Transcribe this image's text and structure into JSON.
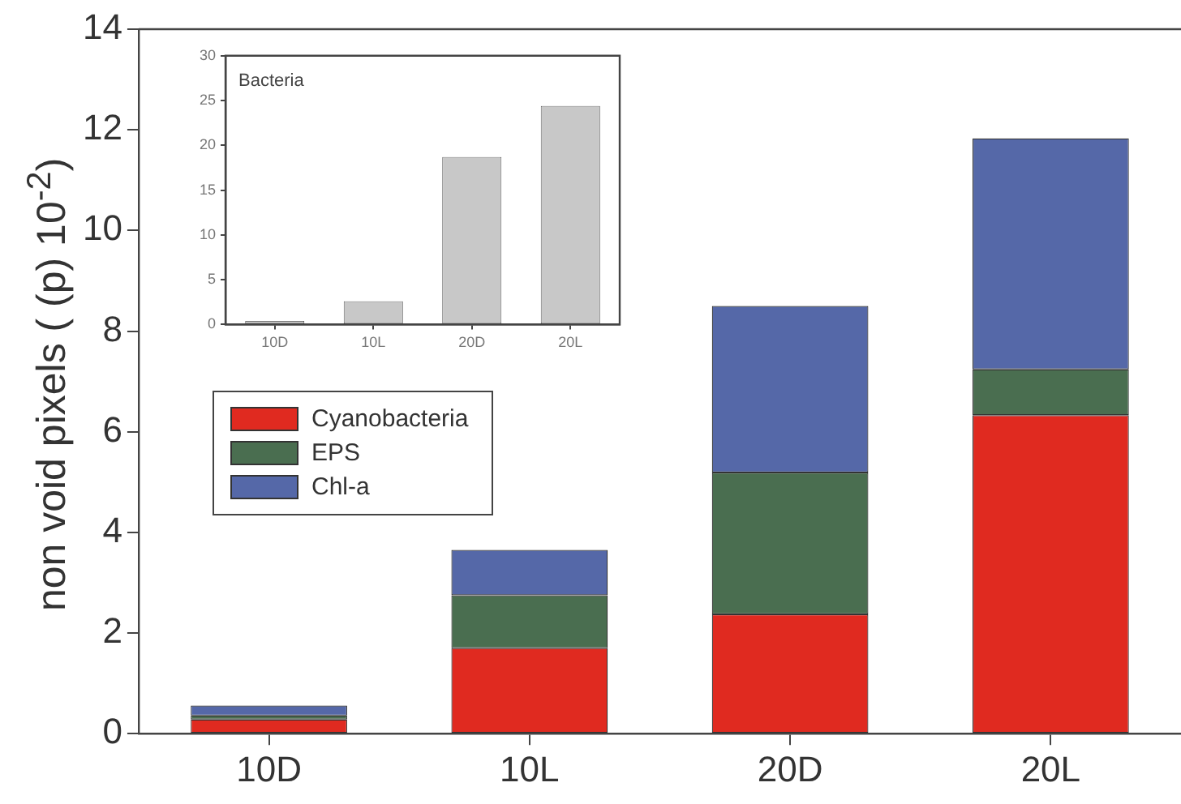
{
  "chart_data": [
    {
      "type": "bar",
      "ylabel": "non  void pixels ( (p) 10$^{-2}$)",
      "categories": [
        "10D",
        "10L",
        "20D",
        "20L"
      ],
      "stacked": true,
      "ylim": [
        0,
        14
      ],
      "yticks": [
        0,
        2,
        4,
        6,
        8,
        10,
        12,
        14
      ],
      "grid": false,
      "legend": "left",
      "series": [
        {
          "name": "Cyanobacteria",
          "color": "#e02a20",
          "values": [
            0.28,
            1.7,
            2.37,
            6.33
          ]
        },
        {
          "name": "EPS",
          "color": "#4a6e50",
          "values": [
            0.08,
            1.05,
            2.82,
            0.91
          ]
        },
        {
          "name": "Chl-a",
          "color": "#5568a8",
          "values": [
            0.2,
            0.9,
            3.31,
            4.59
          ]
        }
      ]
    },
    {
      "type": "bar",
      "title": "Bacteria",
      "categories": [
        "10D",
        "10L",
        "20D",
        "20L"
      ],
      "values": [
        0.4,
        2.6,
        18.7,
        24.4
      ],
      "color": "#c8c8c8",
      "ylim": [
        0,
        30
      ],
      "yticks": [
        0,
        5,
        10,
        15,
        20,
        25,
        30
      ],
      "grid": false
    }
  ]
}
